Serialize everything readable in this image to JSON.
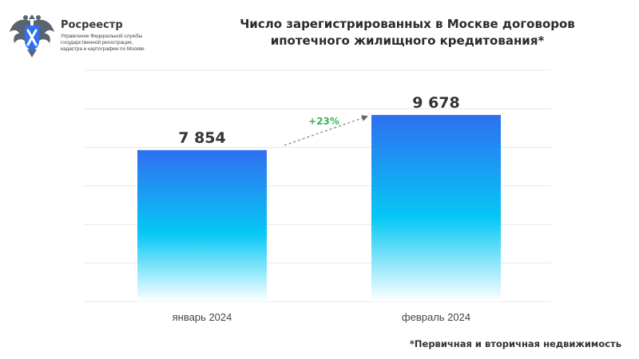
{
  "brand": {
    "name": "Росреестр",
    "subtitle_lines": [
      "Управление Федеральной службы",
      "государственной регистрации,",
      "кадастра и картографии по Москве"
    ]
  },
  "title_lines": [
    "Число зарегистрированных в Москве договоров",
    "ипотечного жилищного кредитования*"
  ],
  "footnote": "*Первичная и вторичная недвижимость",
  "colors": {
    "bar_top": "#2f6ff0",
    "bar_mid": "#05c8f5",
    "bar_bottom": "#ffffff",
    "growth": "#3bb55a",
    "grid": "#e8e8e8"
  },
  "chart_data": {
    "type": "bar",
    "categories": [
      "январь 2024",
      "февраль 2024"
    ],
    "values": [
      7854,
      9678
    ],
    "value_labels": [
      "7 854",
      "9 678"
    ],
    "growth_label": "+23%",
    "title": "Число зарегистрированных в Москве договоров ипотечного жилищного кредитования*",
    "ylim": [
      0,
      12000
    ],
    "grid": true,
    "legend": "none"
  }
}
